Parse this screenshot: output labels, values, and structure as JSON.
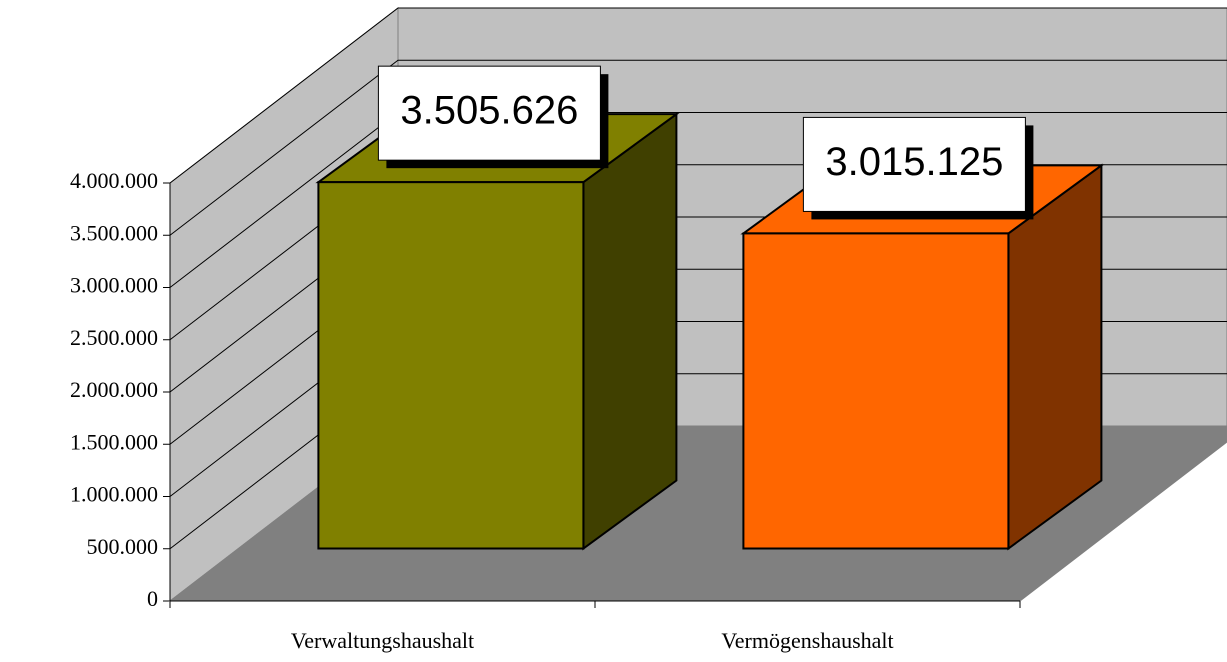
{
  "chart_data": {
    "type": "bar3d",
    "categories": [
      "Verwaltungshaushalt",
      "Vermögenshaushalt"
    ],
    "values": [
      3505626,
      3015125
    ],
    "value_labels": [
      "3.505.626",
      "3.015.125"
    ],
    "colors": [
      "#808000",
      "#ff6600"
    ],
    "ylim": [
      0,
      4000000
    ],
    "yticks": [
      0,
      {
        "value": 500000,
        "label": "500.000"
      },
      {
        "value": 1000000,
        "label": "1.000.000"
      },
      {
        "value": 1500000,
        "label": "1.500.000"
      },
      {
        "value": 2000000,
        "label": "2.000.000"
      },
      {
        "value": 2500000,
        "label": "2.500.000"
      },
      {
        "value": 3000000,
        "label": "3.000.000"
      },
      {
        "value": 3500000,
        "label": "3.500.000"
      },
      {
        "value": 4000000,
        "label": "4.000.000"
      }
    ],
    "grid": true
  }
}
